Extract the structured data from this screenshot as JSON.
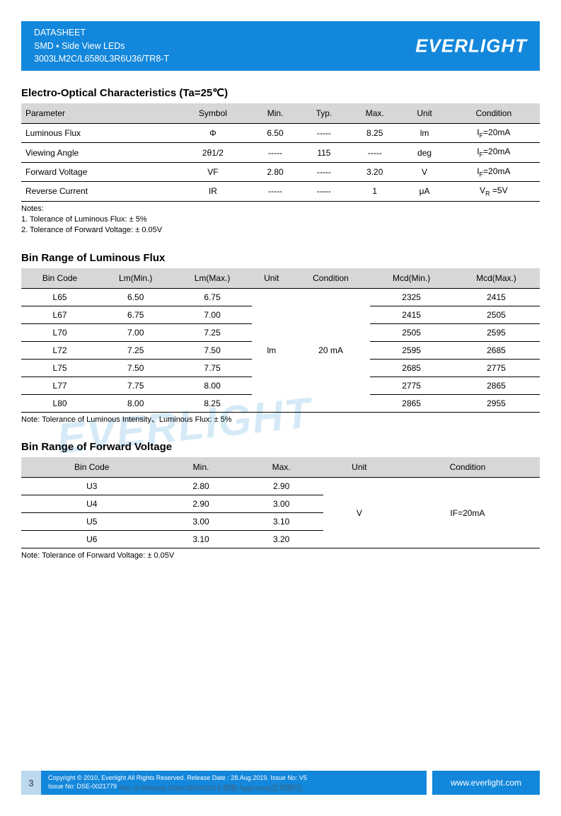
{
  "header": {
    "line1": "DATASHEET",
    "line2": "SMD ▪ Side View LEDs",
    "line3": "3003LM2C/L6580L3R6U36/TR8-T",
    "brand": "EVERLIGHT"
  },
  "colors": {
    "brand_blue": "#1387db",
    "th_bg": "#d7d7d7",
    "watermark": "#d5eaf6"
  },
  "section1": {
    "title": "Electro-Optical Characteristics (Ta=25℃)",
    "columns": [
      "Parameter",
      "Symbol",
      "Min.",
      "Typ.",
      "Max.",
      "Unit",
      "Condition"
    ],
    "rows": [
      {
        "param": "Luminous Flux",
        "symbol": "Φ",
        "min": "6.50",
        "typ": "-----",
        "max": "8.25",
        "unit": "lm",
        "cond": "I<sub>F</sub>=20mA"
      },
      {
        "param": "Viewing Angle",
        "symbol": "2θ1/2",
        "min": "-----",
        "typ": "115",
        "max": "-----",
        "unit": "deg",
        "cond": "I<sub>F</sub>=20mA"
      },
      {
        "param": "Forward Voltage",
        "symbol": "VF",
        "min": "2.80",
        "typ": "-----",
        "max": "3.20",
        "unit": "V",
        "cond": "I<sub>F</sub>=20mA"
      },
      {
        "param": "Reverse Current",
        "symbol": "IR",
        "min": "-----",
        "typ": "-----",
        "max": "1",
        "unit": "μA",
        "cond": "V<sub>R</sub> =5V"
      }
    ],
    "notes_label": "Notes:",
    "note1": "1. Tolerance of Luminous Flux: ± 5%",
    "note2": "2. Tolerance of Forward Voltage: ± 0.05V"
  },
  "section2": {
    "title": "Bin Range of Luminous Flux",
    "columns": [
      "Bin Code",
      "Lm(Min.)",
      "Lm(Max.)",
      "Unit",
      "Condition",
      "Mcd(Min.)",
      "Mcd(Max.)"
    ],
    "merged_unit": "lm",
    "merged_cond": "20 mA",
    "rows": [
      {
        "code": "L65",
        "lmin": "6.50",
        "lmax": "6.75",
        "mmin": "2325",
        "mmax": "2415"
      },
      {
        "code": "L67",
        "lmin": "6.75",
        "lmax": "7.00",
        "mmin": "2415",
        "mmax": "2505"
      },
      {
        "code": "L70",
        "lmin": "7.00",
        "lmax": "7.25",
        "mmin": "2505",
        "mmax": "2595"
      },
      {
        "code": "L72",
        "lmin": "7.25",
        "lmax": "7.50",
        "mmin": "2595",
        "mmax": "2685"
      },
      {
        "code": "L75",
        "lmin": "7.50",
        "lmax": "7.75",
        "mmin": "2685",
        "mmax": "2775"
      },
      {
        "code": "L77",
        "lmin": "7.75",
        "lmax": "8.00",
        "mmin": "2775",
        "mmax": "2865"
      },
      {
        "code": "L80",
        "lmin": "8.00",
        "lmax": "8.25",
        "mmin": "2865",
        "mmax": "2955"
      }
    ],
    "note": "Note: Tolerance of Luminous Intensity、Luminous Flux: ± 5%"
  },
  "section3": {
    "title": "Bin Range of Forward Voltage",
    "columns": [
      "Bin Code",
      "Min.",
      "Max.",
      "Unit",
      "Condition"
    ],
    "merged_unit": "V",
    "merged_cond": "IF=20mA",
    "rows": [
      {
        "code": "U3",
        "min": "2.80",
        "max": "2.90"
      },
      {
        "code": "U4",
        "min": "2.90",
        "max": "3.00"
      },
      {
        "code": "U5",
        "min": "3.00",
        "max": "3.10"
      },
      {
        "code": "U6",
        "min": "3.10",
        "max": "3.20"
      }
    ],
    "note": "Note: Tolerance of Forward Voltage: ± 0.05V"
  },
  "watermark": "EVERLIGHT",
  "footer": {
    "page": "3",
    "line1": "Copyright © 2010, Everlight All Rights Reserved. Release Date : 28.Aug.2019. Issue No: V5",
    "line2": "Issue No: DSE-0021779",
    "ghost": "Rev.:5     Release Date:09/04/2019     狀態:Approved(正式發行)",
    "url": "www.everlight.com"
  }
}
